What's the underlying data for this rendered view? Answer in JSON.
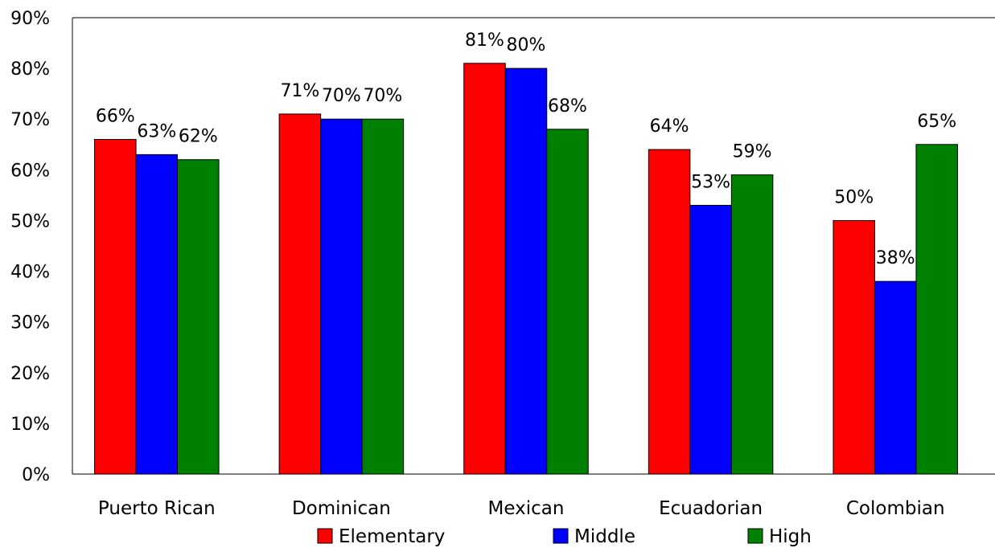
{
  "chart_data": {
    "type": "bar",
    "categories": [
      "Puerto Rican",
      "Dominican",
      "Mexican",
      "Ecuadorian",
      "Colombian"
    ],
    "series": [
      {
        "name": "Elementary",
        "color": "#ff0000",
        "values": [
          66,
          71,
          81,
          64,
          50
        ],
        "labels": [
          "66%",
          "71%",
          "81%",
          "64%",
          "50%"
        ]
      },
      {
        "name": "Middle",
        "color": "#0000ff",
        "values": [
          63,
          70,
          80,
          53,
          38
        ],
        "labels": [
          "63%",
          "70%",
          "80%",
          "53%",
          "38%"
        ]
      },
      {
        "name": "High",
        "color": "#008000",
        "values": [
          62,
          70,
          68,
          59,
          65
        ],
        "labels": [
          "62%",
          "70%",
          "68%",
          "59%",
          "65%"
        ]
      }
    ],
    "y_ticks": [
      "0%",
      "10%",
      "20%",
      "30%",
      "40%",
      "50%",
      "60%",
      "70%",
      "80%",
      "90%"
    ],
    "ylim": [
      0,
      90
    ],
    "ylabel": "",
    "xlabel": "",
    "grid": false,
    "legend": "bottom"
  }
}
